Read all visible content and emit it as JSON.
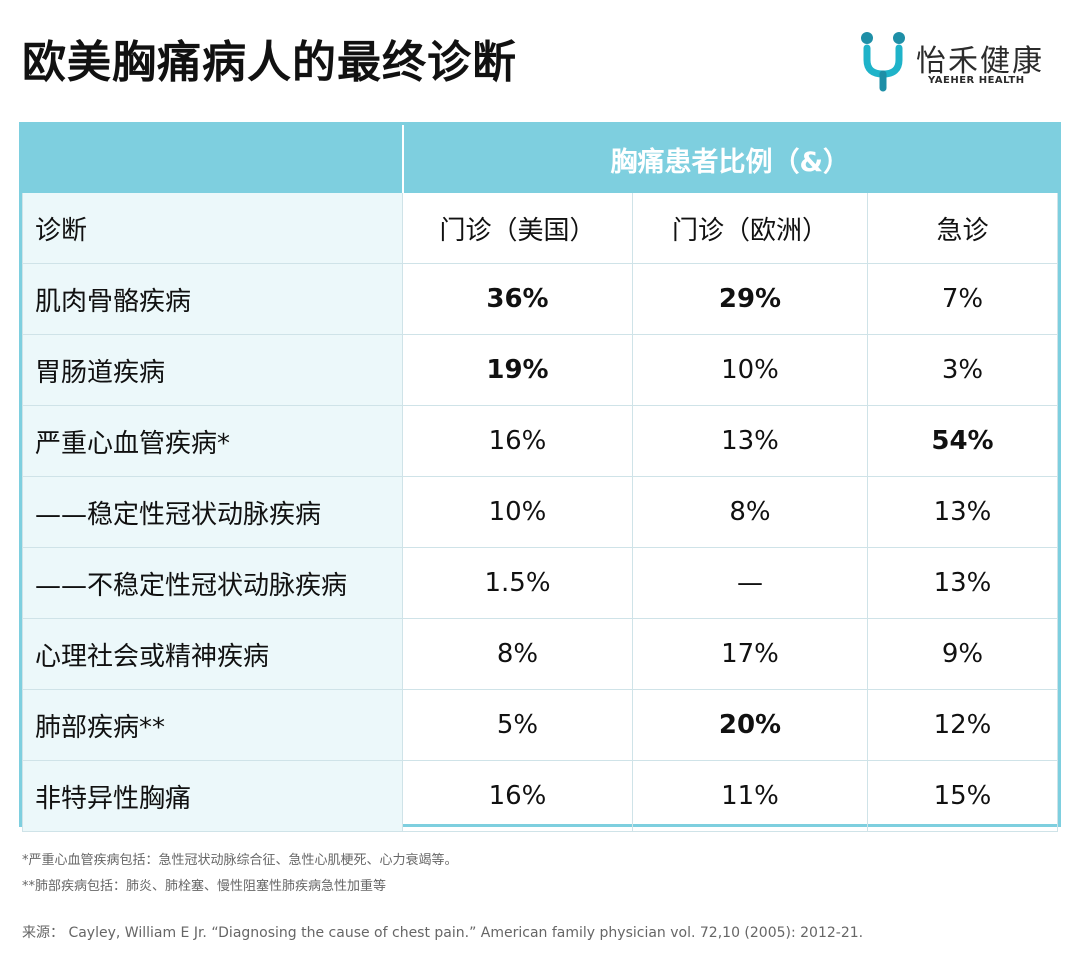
{
  "title": "欧美胸痛病人的最终诊断",
  "logo": {
    "name": "怡禾健康",
    "sub": "YAEHER HEALTH",
    "icon": "yaeher-logo-icon",
    "colors": {
      "accent": "#1fb3c9",
      "dark": "#1e8fa7"
    }
  },
  "colors": {
    "header_bg": "#7ecfdf",
    "label_bg": "#ecf8fa",
    "grid": "#cfe3e8"
  },
  "table": {
    "group_header": "胸痛患者比例（&）",
    "columns": [
      "诊断",
      "门诊（美国）",
      "门诊（欧洲）",
      "急诊"
    ],
    "rows": [
      {
        "label": "肌肉骨骼疾病",
        "values": [
          "36%",
          "29%",
          "7%"
        ]
      },
      {
        "label": "胃肠道疾病",
        "values": [
          "19%",
          "10%",
          "3%"
        ]
      },
      {
        "label": "严重心血管疾病*",
        "values": [
          "16%",
          "13%",
          "54%"
        ]
      },
      {
        "label": "——稳定性冠状动脉疾病",
        "values": [
          "10%",
          "8%",
          "13%"
        ]
      },
      {
        "label": "——不稳定性冠状动脉疾病",
        "values": [
          "1.5%",
          "—",
          "13%"
        ]
      },
      {
        "label": "心理社会或精神疾病",
        "values": [
          "8%",
          "17%",
          "9%"
        ]
      },
      {
        "label": "肺部疾病**",
        "values": [
          "5%",
          "20%",
          "12%"
        ]
      },
      {
        "label": "非特异性胸痛",
        "values": [
          "16%",
          "11%",
          "15%"
        ]
      }
    ]
  },
  "notes": [
    "*严重心血管疾病包括：急性冠状动脉综合征、急性心肌梗死、心力衰竭等。",
    "**肺部疾病包括：肺炎、肺栓塞、慢性阻塞性肺疾病急性加重等"
  ],
  "source": "来源： Cayley, William E Jr. “Diagnosing the cause of chest pain.” American family physician vol. 72,10 (2005): 2012-21."
}
